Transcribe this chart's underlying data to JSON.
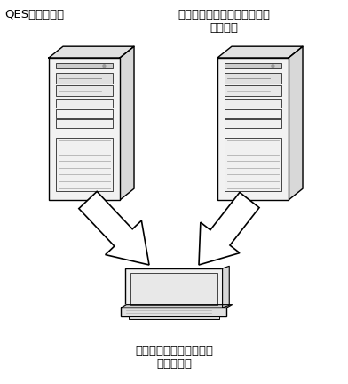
{
  "bg_color": "#ffffff",
  "label_left": "QES系统服务器",
  "label_right": "高温铸坯表面缺陷在线检测系\n统服务器",
  "label_bottom": "铸坯表面质量控制系统工\n艺站服务器",
  "line_color": "#000000",
  "font_path_hints": [
    "SimHei",
    "Microsoft YaHei",
    "WenQuanYi Micro Hei",
    "Noto Sans CJK SC",
    "Arial Unicode MS",
    "DejaVu Sans"
  ],
  "fontsize": 9.5
}
